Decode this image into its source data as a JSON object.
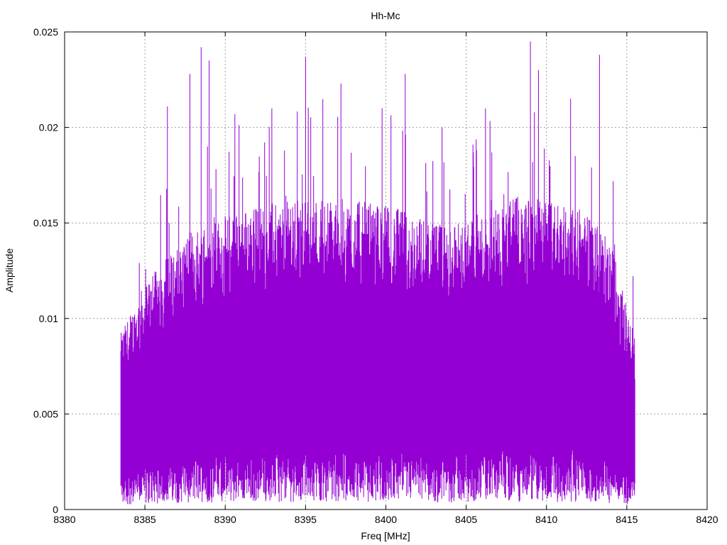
{
  "chart_data": {
    "type": "line",
    "title": "Hh-Mc",
    "xlabel": "Freq [MHz]",
    "ylabel": "Amplitude",
    "xlim": [
      8380,
      8420
    ],
    "ylim": [
      0,
      0.025
    ],
    "xticks": [
      8380,
      8385,
      8390,
      8395,
      8400,
      8405,
      8410,
      8415,
      8420
    ],
    "xtick_labels": [
      "8380",
      "8385",
      "8390",
      "8395",
      "8400",
      "8405",
      "8410",
      "8415",
      "8420"
    ],
    "yticks": [
      0,
      0.005,
      0.01,
      0.015,
      0.02,
      0.025
    ],
    "ytick_labels": [
      "0",
      "0.005",
      "0.01",
      "0.015",
      "0.02",
      "0.025"
    ],
    "grid": true,
    "series": [
      {
        "color": "#9400d3",
        "x_range": [
          8383.5,
          8415.5
        ],
        "mean_amplitude_envelope": [
          {
            "x": 8383.5,
            "y": 0.0045
          },
          {
            "x": 8385,
            "y": 0.0058
          },
          {
            "x": 8388,
            "y": 0.0072
          },
          {
            "x": 8392,
            "y": 0.0078
          },
          {
            "x": 8396,
            "y": 0.008
          },
          {
            "x": 8400,
            "y": 0.0078
          },
          {
            "x": 8404,
            "y": 0.0072
          },
          {
            "x": 8408,
            "y": 0.008
          },
          {
            "x": 8412,
            "y": 0.0078
          },
          {
            "x": 8414,
            "y": 0.0068
          },
          {
            "x": 8415.5,
            "y": 0.0045
          }
        ],
        "notable_peaks": [
          {
            "x": 8388.5,
            "y": 0.0242
          },
          {
            "x": 8389.0,
            "y": 0.0235
          },
          {
            "x": 8387.8,
            "y": 0.0228
          },
          {
            "x": 8395.0,
            "y": 0.0237
          },
          {
            "x": 8397.2,
            "y": 0.0223
          },
          {
            "x": 8401.2,
            "y": 0.0228
          },
          {
            "x": 8409.0,
            "y": 0.0245
          },
          {
            "x": 8409.5,
            "y": 0.023
          },
          {
            "x": 8413.3,
            "y": 0.0238
          },
          {
            "x": 8386.4,
            "y": 0.0211
          },
          {
            "x": 8390.6,
            "y": 0.0207
          },
          {
            "x": 8392.9,
            "y": 0.021
          },
          {
            "x": 8403.5,
            "y": 0.02
          },
          {
            "x": 8406.2,
            "y": 0.021
          },
          {
            "x": 8411.5,
            "y": 0.0215
          }
        ]
      }
    ]
  }
}
